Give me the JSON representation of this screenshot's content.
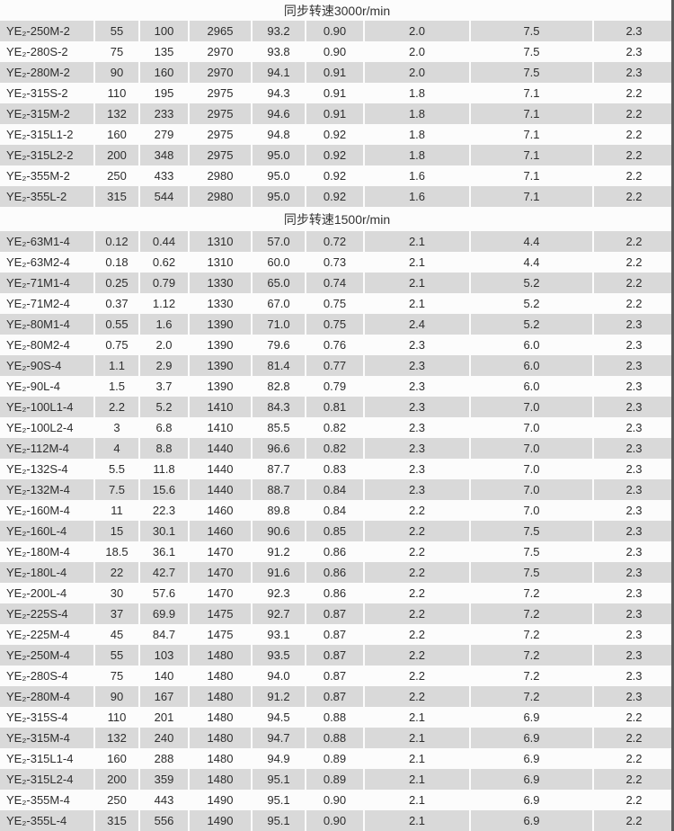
{
  "page": {
    "background_color": "#fcfcfc",
    "alt_row_color": "#d9d9d9",
    "text_color": "#2d2d2d",
    "right_edge_color": "#5b5b5b"
  },
  "table": {
    "sections": [
      {
        "title": "同步转速3000r/min",
        "rows": [
          [
            "YE₂-250M-2",
            "55",
            "100",
            "2965",
            "93.2",
            "0.90",
            "2.0",
            "7.5",
            "2.3"
          ],
          [
            "YE₂-280S-2",
            "75",
            "135",
            "2970",
            "93.8",
            "0.90",
            "2.0",
            "7.5",
            "2.3"
          ],
          [
            "YE₂-280M-2",
            "90",
            "160",
            "2970",
            "94.1",
            "0.91",
            "2.0",
            "7.5",
            "2.3"
          ],
          [
            "YE₂-315S-2",
            "110",
            "195",
            "2975",
            "94.3",
            "0.91",
            "1.8",
            "7.1",
            "2.2"
          ],
          [
            "YE₂-315M-2",
            "132",
            "233",
            "2975",
            "94.6",
            "0.91",
            "1.8",
            "7.1",
            "2.2"
          ],
          [
            "YE₂-315L1-2",
            "160",
            "279",
            "2975",
            "94.8",
            "0.92",
            "1.8",
            "7.1",
            "2.2"
          ],
          [
            "YE₂-315L2-2",
            "200",
            "348",
            "2975",
            "95.0",
            "0.92",
            "1.8",
            "7.1",
            "2.2"
          ],
          [
            "YE₂-355M-2",
            "250",
            "433",
            "2980",
            "95.0",
            "0.92",
            "1.6",
            "7.1",
            "2.2"
          ],
          [
            "YE₂-355L-2",
            "315",
            "544",
            "2980",
            "95.0",
            "0.92",
            "1.6",
            "7.1",
            "2.2"
          ]
        ]
      },
      {
        "title": "同步转速1500r/min",
        "rows": [
          [
            "YE₂-63M1-4",
            "0.12",
            "0.44",
            "1310",
            "57.0",
            "0.72",
            "2.1",
            "4.4",
            "2.2"
          ],
          [
            "YE₂-63M2-4",
            "0.18",
            "0.62",
            "1310",
            "60.0",
            "0.73",
            "2.1",
            "4.4",
            "2.2"
          ],
          [
            "YE₂-71M1-4",
            "0.25",
            "0.79",
            "1330",
            "65.0",
            "0.74",
            "2.1",
            "5.2",
            "2.2"
          ],
          [
            "YE₂-71M2-4",
            "0.37",
            "1.12",
            "1330",
            "67.0",
            "0.75",
            "2.1",
            "5.2",
            "2.2"
          ],
          [
            "YE₂-80M1-4",
            "0.55",
            "1.6",
            "1390",
            "71.0",
            "0.75",
            "2.4",
            "5.2",
            "2.3"
          ],
          [
            "YE₂-80M2-4",
            "0.75",
            "2.0",
            "1390",
            "79.6",
            "0.76",
            "2.3",
            "6.0",
            "2.3"
          ],
          [
            "YE₂-90S-4",
            "1.1",
            "2.9",
            "1390",
            "81.4",
            "0.77",
            "2.3",
            "6.0",
            "2.3"
          ],
          [
            "YE₂-90L-4",
            "1.5",
            "3.7",
            "1390",
            "82.8",
            "0.79",
            "2.3",
            "6.0",
            "2.3"
          ],
          [
            "YE₂-100L1-4",
            "2.2",
            "5.2",
            "1410",
            "84.3",
            "0.81",
            "2.3",
            "7.0",
            "2.3"
          ],
          [
            "YE₂-100L2-4",
            "3",
            "6.8",
            "1410",
            "85.5",
            "0.82",
            "2.3",
            "7.0",
            "2.3"
          ],
          [
            "YE₂-112M-4",
            "4",
            "8.8",
            "1440",
            "96.6",
            "0.82",
            "2.3",
            "7.0",
            "2.3"
          ],
          [
            "YE₂-132S-4",
            "5.5",
            "11.8",
            "1440",
            "87.7",
            "0.83",
            "2.3",
            "7.0",
            "2.3"
          ],
          [
            "YE₂-132M-4",
            "7.5",
            "15.6",
            "1440",
            "88.7",
            "0.84",
            "2.3",
            "7.0",
            "2.3"
          ],
          [
            "YE₂-160M-4",
            "11",
            "22.3",
            "1460",
            "89.8",
            "0.84",
            "2.2",
            "7.0",
            "2.3"
          ],
          [
            "YE₂-160L-4",
            "15",
            "30.1",
            "1460",
            "90.6",
            "0.85",
            "2.2",
            "7.5",
            "2.3"
          ],
          [
            "YE₂-180M-4",
            "18.5",
            "36.1",
            "1470",
            "91.2",
            "0.86",
            "2.2",
            "7.5",
            "2.3"
          ],
          [
            "YE₂-180L-4",
            "22",
            "42.7",
            "1470",
            "91.6",
            "0.86",
            "2.2",
            "7.5",
            "2.3"
          ],
          [
            "YE₂-200L-4",
            "30",
            "57.6",
            "1470",
            "92.3",
            "0.86",
            "2.2",
            "7.2",
            "2.3"
          ],
          [
            "YE₂-225S-4",
            "37",
            "69.9",
            "1475",
            "92.7",
            "0.87",
            "2.2",
            "7.2",
            "2.3"
          ],
          [
            "YE₂-225M-4",
            "45",
            "84.7",
            "1475",
            "93.1",
            "0.87",
            "2.2",
            "7.2",
            "2.3"
          ],
          [
            "YE₂-250M-4",
            "55",
            "103",
            "1480",
            "93.5",
            "0.87",
            "2.2",
            "7.2",
            "2.3"
          ],
          [
            "YE₂-280S-4",
            "75",
            "140",
            "1480",
            "94.0",
            "0.87",
            "2.2",
            "7.2",
            "2.3"
          ],
          [
            "YE₂-280M-4",
            "90",
            "167",
            "1480",
            "91.2",
            "0.87",
            "2.2",
            "7.2",
            "2.3"
          ],
          [
            "YE₂-315S-4",
            "110",
            "201",
            "1480",
            "94.5",
            "0.88",
            "2.1",
            "6.9",
            "2.2"
          ],
          [
            "YE₂-315M-4",
            "132",
            "240",
            "1480",
            "94.7",
            "0.88",
            "2.1",
            "6.9",
            "2.2"
          ],
          [
            "YE₂-315L1-4",
            "160",
            "288",
            "1480",
            "94.9",
            "0.89",
            "2.1",
            "6.9",
            "2.2"
          ],
          [
            "YE₂-315L2-4",
            "200",
            "359",
            "1480",
            "95.1",
            "0.89",
            "2.1",
            "6.9",
            "2.2"
          ],
          [
            "YE₂-355M-4",
            "250",
            "443",
            "1490",
            "95.1",
            "0.90",
            "2.1",
            "6.9",
            "2.2"
          ],
          [
            "YE₂-355L-4",
            "315",
            "556",
            "1490",
            "95.1",
            "0.90",
            "2.1",
            "6.9",
            "2.2"
          ]
        ]
      }
    ]
  }
}
